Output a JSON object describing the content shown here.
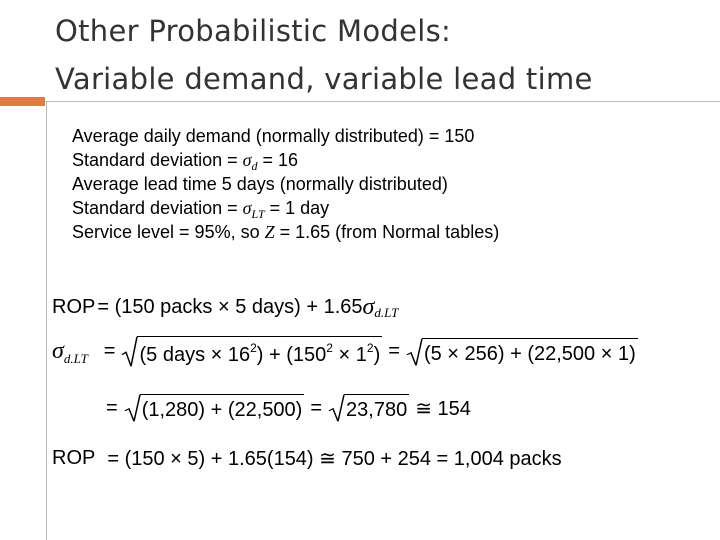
{
  "title": [
    "Other Probabilistic Models:",
    "Variable demand, variable lead time"
  ],
  "lines": [
    [
      "Average daily demand (normally distributed) = 150"
    ],
    [
      "Standard deviation = ",
      "σ",
      "d",
      " = 16"
    ],
    [
      "Average lead time 5 days (normally distributed)"
    ],
    [
      "Standard deviation = ",
      "σ",
      "LT",
      " = 1 day"
    ],
    [
      "Service level = 95%, so ",
      "Z",
      " = 1.65 (from Normal tables)"
    ]
  ],
  "equations": [
    [
      "ROP",
      "= (150 packs × 5 days) + 1.65",
      "σ",
      "d.LT"
    ],
    [
      "σ",
      "d.LT",
      "=",
      "(5 days × 16",
      "2",
      ") + (150",
      "2",
      " × 1",
      "2",
      ")",
      "=",
      "(5 × 256) + (22,500 × 1)"
    ],
    [
      "=",
      "(1,280) + (22,500)",
      "=",
      "23,780",
      "≅ 154"
    ],
    [
      "ROP",
      "= (150 × 5) + 1.65(154) ≅ 750 + 254 = 1,004 packs"
    ]
  ]
}
